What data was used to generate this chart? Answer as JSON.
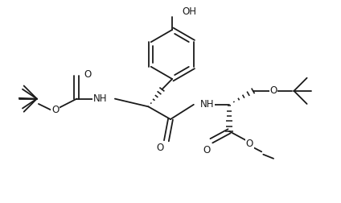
{
  "bg_color": "#ffffff",
  "line_color": "#1a1a1a",
  "line_width": 1.3,
  "font_size": 8.5,
  "fig_width": 4.24,
  "fig_height": 2.52,
  "dpi": 100,
  "xlim": [
    0,
    10
  ],
  "ylim": [
    0,
    5.94
  ]
}
